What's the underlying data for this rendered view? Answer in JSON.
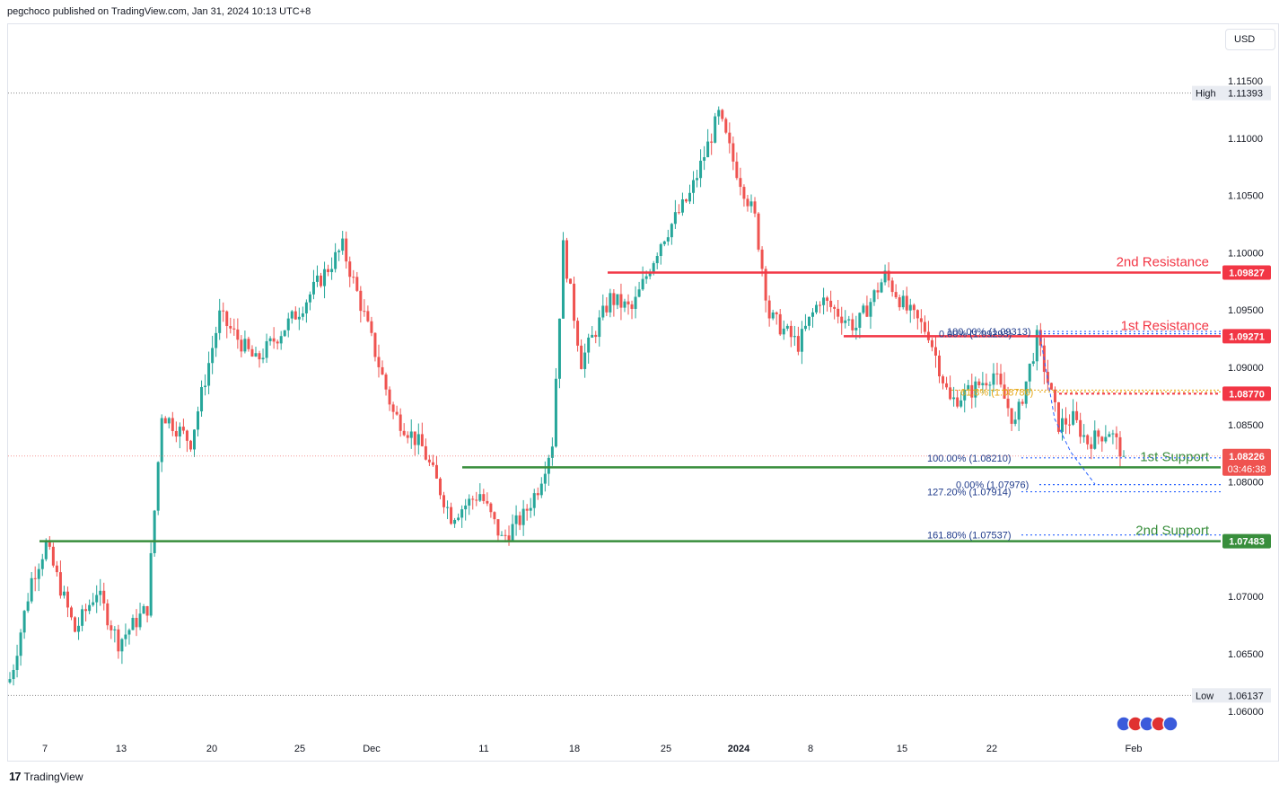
{
  "header": {
    "text": "pegchoco published on TradingView.com, Jan 31, 2024 10:13 UTC+8"
  },
  "currency_button": "USD",
  "footer": {
    "logo_mark": "17",
    "brand": "TradingView"
  },
  "colors": {
    "up": "#26a69a",
    "down": "#ef5350",
    "resistance": "#f23645",
    "support": "#388e3c",
    "fib": "#2962ff",
    "fib_text": "#1e3a8a",
    "pivot": "#e6a817"
  },
  "chart_data": {
    "type": "candlestick",
    "instrument_currency": "USD",
    "ylim": [
      1.0575,
      1.118
    ],
    "y_ticks": [
      "1.11500",
      "1.11000",
      "1.10500",
      "1.10000",
      "1.09500",
      "1.09000",
      "1.08500",
      "1.08000",
      "1.07500",
      "1.07000",
      "1.06500",
      "1.06000"
    ],
    "x_ticks": [
      "7",
      "13",
      "20",
      "25",
      "Dec",
      "11",
      "18",
      "25",
      "2024",
      "8",
      "15",
      "22",
      "Feb"
    ],
    "high": {
      "label": "High",
      "value": "1.11393"
    },
    "low": {
      "label": "Low",
      "value": "1.06137"
    },
    "last_price": {
      "value": "1.08226",
      "countdown": "03:46:38"
    },
    "levels": [
      {
        "name": "2nd Resistance",
        "value": "1.09827",
        "kind": "resistance"
      },
      {
        "name": "1st Resistance",
        "value": "1.09271",
        "kind": "resistance"
      },
      {
        "name": "",
        "value": "1.08770",
        "kind": "pivot"
      },
      {
        "name": "1st Support",
        "value": "1.08127",
        "kind": "support"
      },
      {
        "name": "2nd Support",
        "value": "1.07483",
        "kind": "support"
      }
    ],
    "fib_labels": [
      {
        "text": "100.00% (1.08210)"
      },
      {
        "text": "0.00% (1.07976)"
      },
      {
        "text": "127.20% (1.07914)"
      },
      {
        "text": "161.80% (1.07537)"
      },
      {
        "text": "100.00% (1.09313)"
      },
      {
        "text": "0.00% (1.09293)"
      },
      {
        "text": "61.8% (1.08786)"
      }
    ],
    "anchors": [
      [
        0,
        1.0625
      ],
      [
        6,
        1.0715
      ],
      [
        10,
        1.0745
      ],
      [
        18,
        1.067
      ],
      [
        24,
        1.0705
      ],
      [
        30,
        1.066
      ],
      [
        38,
        1.069
      ],
      [
        42,
        1.086
      ],
      [
        50,
        1.0835
      ],
      [
        58,
        1.0945
      ],
      [
        68,
        1.0905
      ],
      [
        80,
        1.095
      ],
      [
        92,
        1.1005
      ],
      [
        98,
        1.0945
      ],
      [
        106,
        1.086
      ],
      [
        114,
        1.083
      ],
      [
        122,
        1.077
      ],
      [
        130,
        1.079
      ],
      [
        136,
        1.075
      ],
      [
        142,
        1.077
      ],
      [
        146,
        1.0795
      ],
      [
        150,
        1.0835
      ],
      [
        153,
        1.1005
      ],
      [
        158,
        1.0905
      ],
      [
        166,
        1.096
      ],
      [
        172,
        1.095
      ],
      [
        180,
        1.101
      ],
      [
        188,
        1.105
      ],
      [
        196,
        1.112
      ],
      [
        200,
        1.108
      ],
      [
        206,
        1.103
      ],
      [
        210,
        1.0945
      ],
      [
        218,
        1.092
      ],
      [
        224,
        1.096
      ],
      [
        234,
        1.0935
      ],
      [
        242,
        1.098
      ],
      [
        248,
        1.095
      ],
      [
        254,
        1.093
      ],
      [
        260,
        1.087
      ],
      [
        266,
        1.088
      ],
      [
        272,
        1.0895
      ],
      [
        278,
        1.085
      ],
      [
        284,
        1.0925
      ],
      [
        290,
        1.085
      ],
      [
        294,
        1.0855
      ],
      [
        298,
        1.0835
      ],
      [
        304,
        1.0845
      ],
      [
        308,
        1.0823
      ]
    ]
  }
}
